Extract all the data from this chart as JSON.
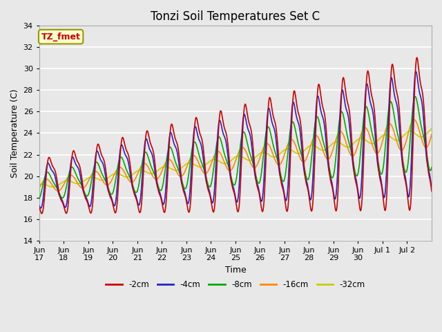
{
  "title": "Tonzi Soil Temperatures Set C",
  "xlabel": "Time",
  "ylabel": "Soil Temperature (C)",
  "ylim": [
    14,
    34
  ],
  "yticks": [
    14,
    16,
    18,
    20,
    22,
    24,
    26,
    28,
    30,
    32,
    34
  ],
  "bg_color": "#e8e8e8",
  "plot_bg_color": "#e8e8e8",
  "grid_color": "#ffffff",
  "legend_label": "TZ_fmet",
  "series_labels": [
    "-2cm",
    "-4cm",
    "-8cm",
    "-16cm",
    "-32cm"
  ],
  "series_colors": [
    "#cc0000",
    "#2222cc",
    "#00aa00",
    "#ff8800",
    "#cccc00"
  ],
  "line_width": 1.2,
  "title_fontsize": 12,
  "axis_label_fontsize": 9,
  "tick_fontsize": 8,
  "xtick_labels": [
    "Jun\n17",
    "Jun\n18",
    "Jun\n19",
    "Jun\n20",
    "Jun\n21",
    "Jun\n22",
    "Jun\n23",
    "Jun\n24",
    "Jun\n25",
    "Jun\n26",
    "Jun\n27",
    "Jun\n28",
    "Jun\n29",
    "Jun\n30",
    "Jul 1",
    "Jul 2"
  ]
}
